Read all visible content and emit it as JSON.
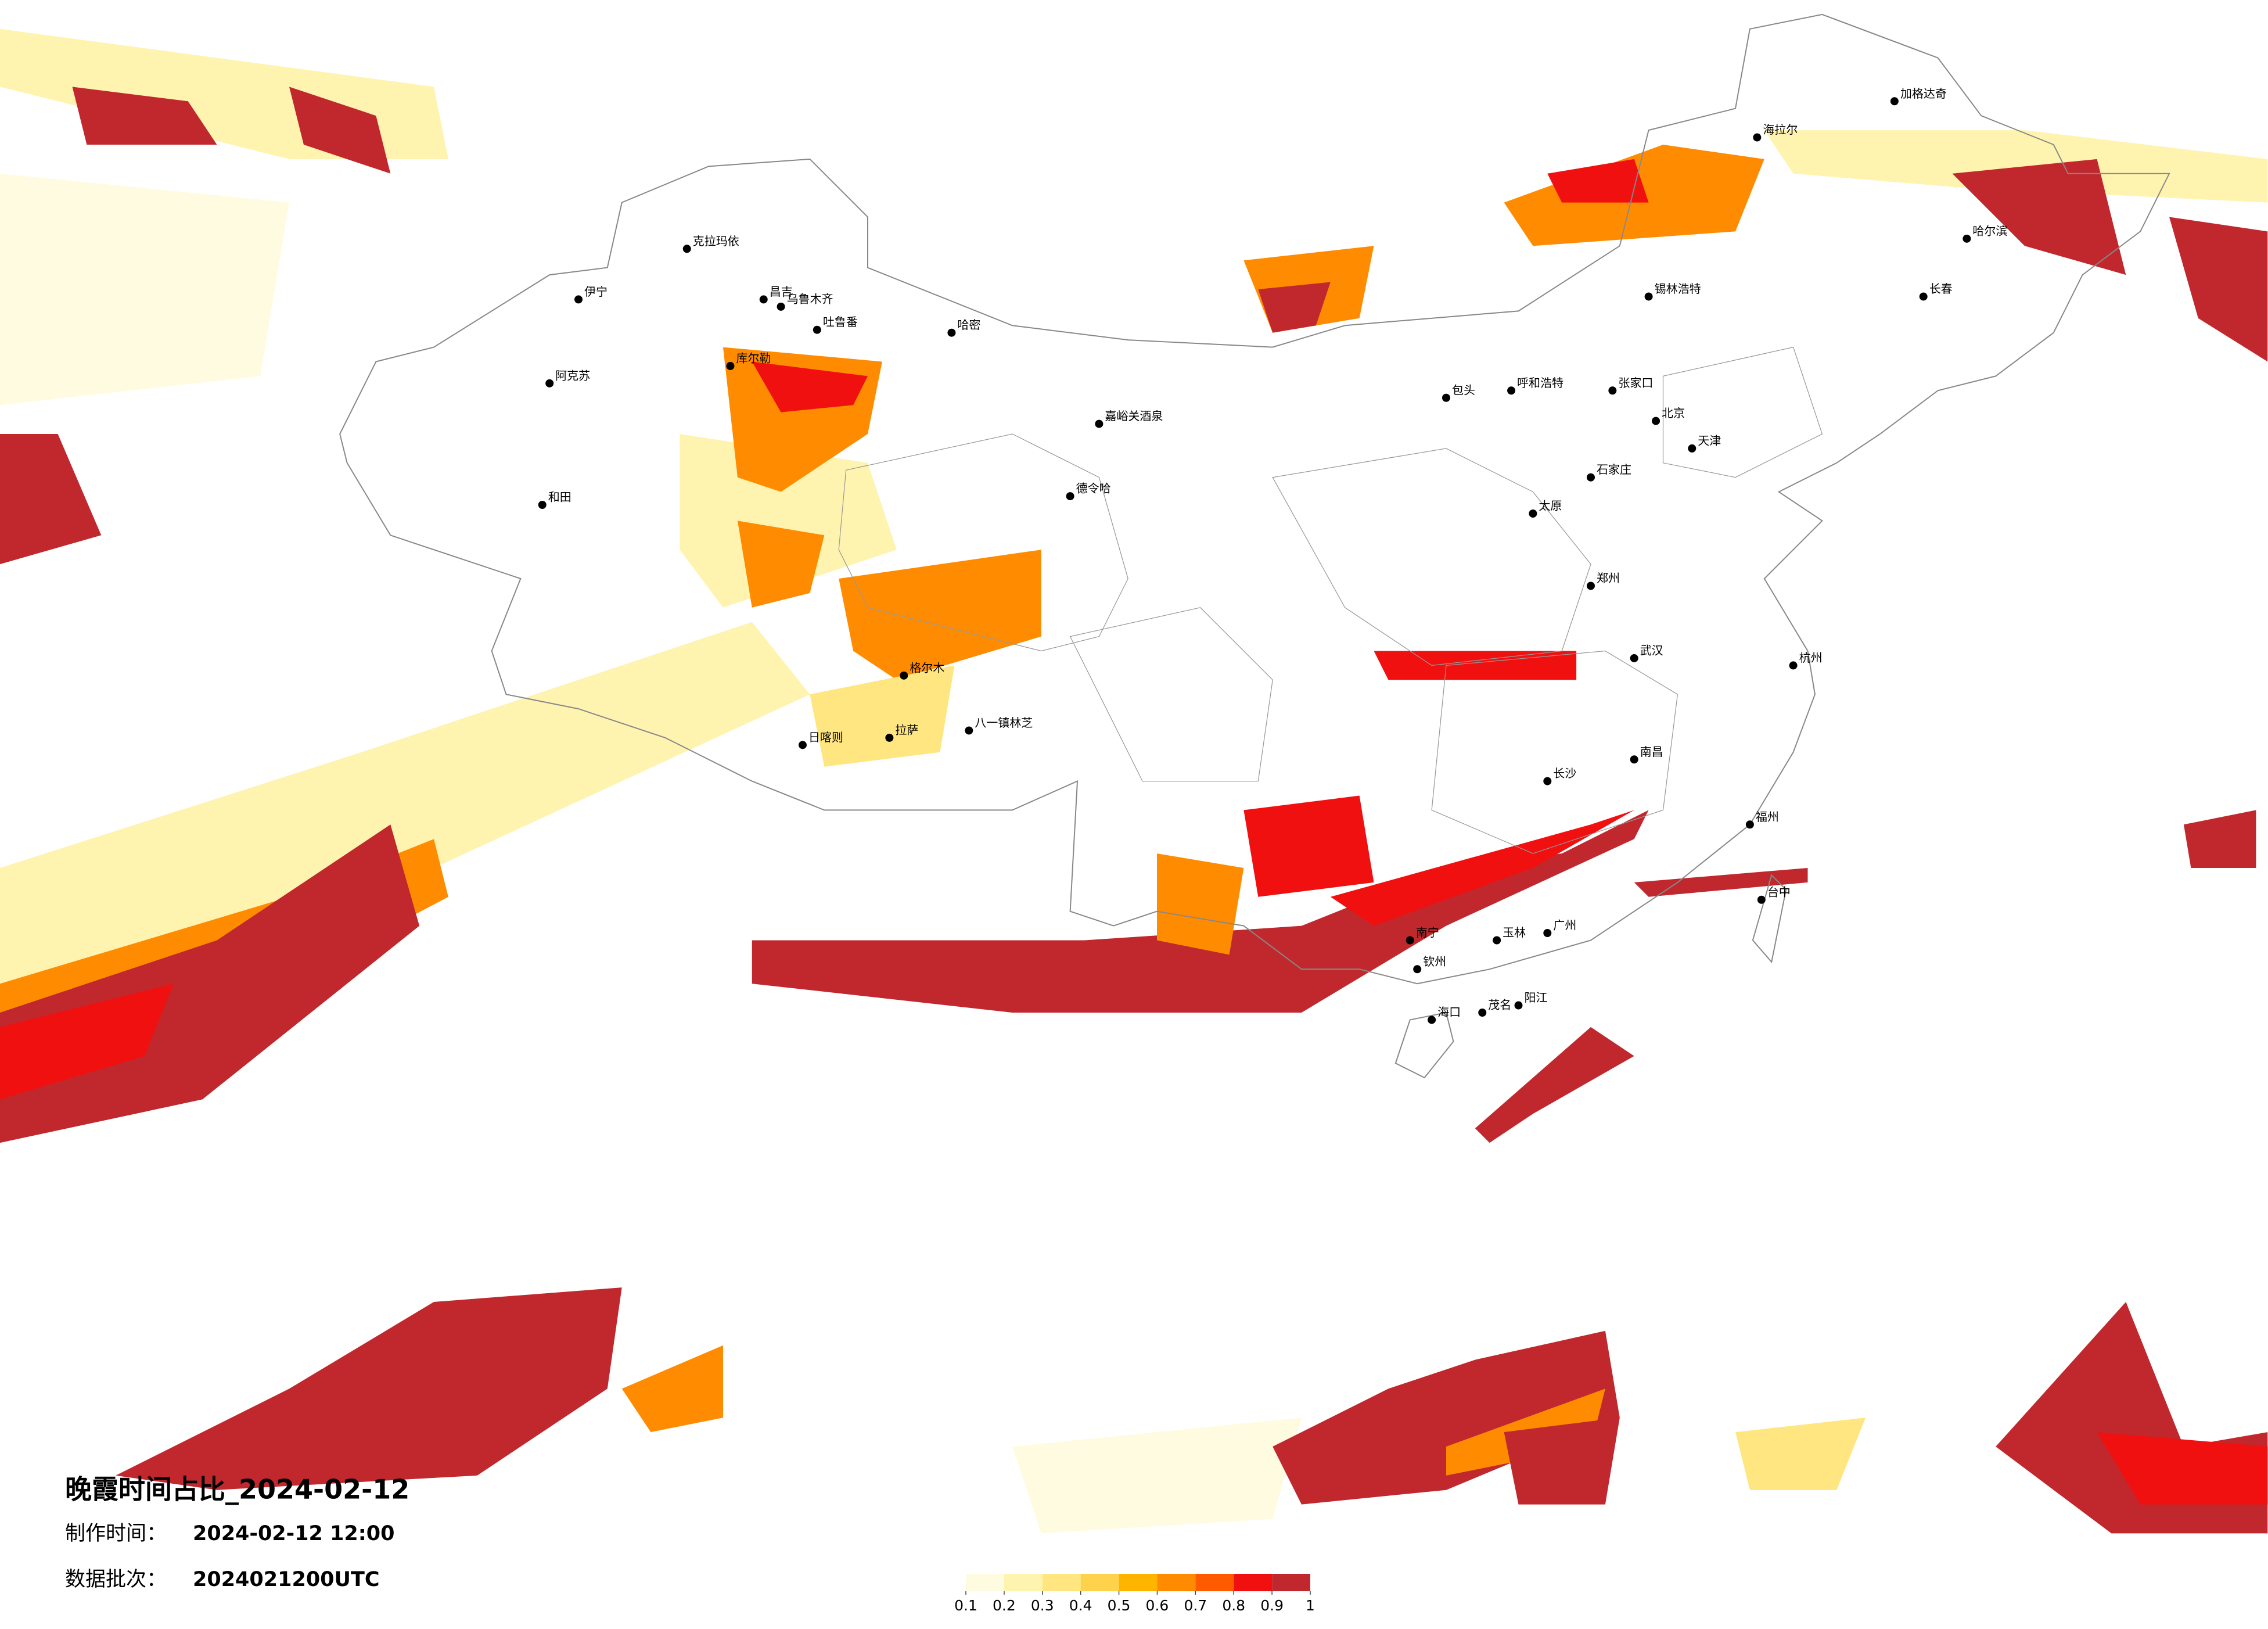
{
  "map": {
    "title": "晚霞时间占比_2024-02-12",
    "production_time_label": "制作时间：",
    "production_time": "2024-02-12 12:00",
    "data_batch_label": "数据批次：",
    "data_batch": "2024021200UTC",
    "legend": {
      "colors": [
        "#fffbe0",
        "#fff3b0",
        "#ffe680",
        "#ffd24d",
        "#ffb400",
        "#ff8c00",
        "#ff5a00",
        "#f01010",
        "#c0282d"
      ],
      "ticks": [
        0.1,
        0.2,
        0.3,
        0.4,
        0.5,
        0.6,
        0.7,
        0.8,
        0.9,
        1
      ]
    },
    "cities": [
      "克拉玛依",
      "伊宁",
      "昌吉",
      "乌鲁木齐",
      "吐鲁番",
      "哈密",
      "库尔勒",
      "阿克苏",
      "和田",
      "嘉峪关酒泉",
      "德令哈",
      "格尔木",
      "日喀则",
      "拉萨",
      "八一镇林芝",
      "呼和浩特",
      "包头",
      "北京",
      "天津",
      "石家庄",
      "太原",
      "郑州",
      "武汉",
      "长沙",
      "南昌",
      "杭州",
      "福州",
      "广州",
      "南宁",
      "海口",
      "哈尔滨",
      "长春",
      "海拉尔",
      "加格达奇",
      "锡林浩特",
      "张家口",
      "玉林",
      "钦州",
      "茂名",
      "阳江",
      "台中"
    ]
  }
}
